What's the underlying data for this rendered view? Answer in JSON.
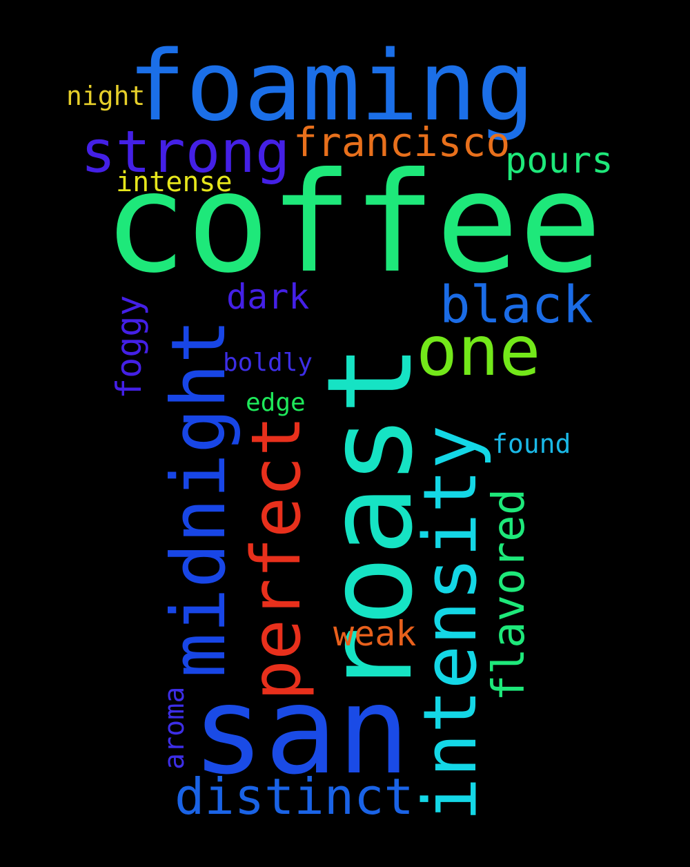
{
  "words": [
    {
      "id": "coffee",
      "text": "coffee",
      "color": "#1ee87a"
    },
    {
      "id": "roast",
      "text": "roast",
      "color": "#16e3c4"
    },
    {
      "id": "san",
      "text": "san",
      "color": "#1a4be6"
    },
    {
      "id": "foaming",
      "text": "foaming",
      "color": "#1b6fe8"
    },
    {
      "id": "midnight",
      "text": "midnight",
      "color": "#1846e6"
    },
    {
      "id": "intensity",
      "text": "intensity",
      "color": "#14d7e6"
    },
    {
      "id": "perfect",
      "text": "perfect",
      "color": "#e8301c"
    },
    {
      "id": "one",
      "text": "one",
      "color": "#73e81a"
    },
    {
      "id": "strong",
      "text": "strong",
      "color": "#4420e6"
    },
    {
      "id": "black",
      "text": "black",
      "color": "#1b6ce6"
    },
    {
      "id": "distinct",
      "text": "distinct",
      "color": "#1a63e6"
    },
    {
      "id": "francisco",
      "text": "francisco",
      "color": "#e8701c"
    },
    {
      "id": "flavored",
      "text": "flavored",
      "color": "#1ee87a"
    },
    {
      "id": "pours",
      "text": "pours",
      "color": "#1ee87a"
    },
    {
      "id": "dark",
      "text": "dark",
      "color": "#4420e6"
    },
    {
      "id": "foggy",
      "text": "foggy",
      "color": "#4420e6"
    },
    {
      "id": "weak",
      "text": "weak",
      "color": "#e8601c"
    },
    {
      "id": "intense",
      "text": "intense",
      "color": "#e6e61c"
    },
    {
      "id": "night",
      "text": "night",
      "color": "#e6cf2a"
    },
    {
      "id": "aroma",
      "text": "aroma",
      "color": "#3d2ee6"
    },
    {
      "id": "boldly",
      "text": "boldly",
      "color": "#3d2ee6"
    },
    {
      "id": "edge",
      "text": "edge",
      "color": "#1ee85a"
    },
    {
      "id": "found",
      "text": "found",
      "color": "#1ab8e6"
    }
  ]
}
